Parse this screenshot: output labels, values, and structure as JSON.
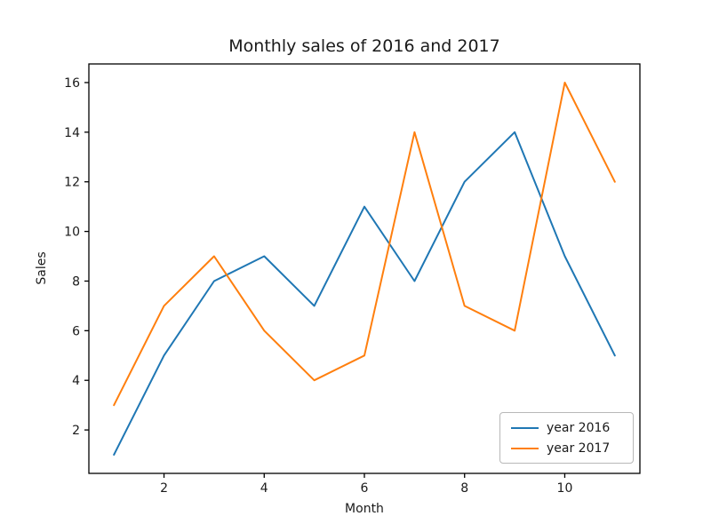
{
  "chart_data": {
    "type": "line",
    "title": "Monthly sales of 2016 and 2017",
    "xlabel": "Month",
    "ylabel": "Sales",
    "x": [
      1,
      2,
      3,
      4,
      5,
      6,
      7,
      8,
      9,
      10,
      11
    ],
    "series": [
      {
        "name": "year 2016",
        "color": "#1f77b4",
        "values": [
          1,
          5,
          8,
          9,
          7,
          11,
          8,
          12,
          14,
          9,
          5
        ]
      },
      {
        "name": "year 2017",
        "color": "#ff7f0e",
        "values": [
          3,
          7,
          9,
          6,
          4,
          5,
          14,
          7,
          6,
          16,
          12
        ]
      }
    ],
    "xticks": [
      2,
      4,
      6,
      8,
      10
    ],
    "yticks": [
      2,
      4,
      6,
      8,
      10,
      12,
      14,
      16
    ],
    "xlim": [
      0.5,
      11.5
    ],
    "ylim": [
      0.25,
      16.75
    ],
    "grid": false,
    "legend": {
      "position": "lower right",
      "entries": [
        "year 2016",
        "year 2017"
      ]
    },
    "axis_color": "#000000",
    "text_color": "#1a1a1a",
    "background": "#ffffff"
  }
}
